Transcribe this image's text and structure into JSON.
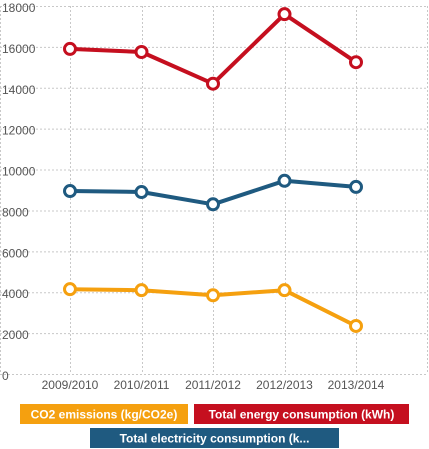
{
  "chart_data": {
    "type": "line",
    "categories": [
      "2009/2010",
      "2010/2011",
      "2011/2012",
      "2012/2013",
      "2013/2014"
    ],
    "ylim": [
      0,
      18000
    ],
    "yticks": [
      0,
      2000,
      4000,
      6000,
      8000,
      10000,
      12000,
      14000,
      16000,
      18000
    ],
    "grid": true,
    "legend_position": "bottom",
    "series": [
      {
        "name": "CO2 emissions (kg/CO2e)",
        "color": "#f5a00f",
        "values": [
          4150,
          4100,
          3850,
          4100,
          2350
        ]
      },
      {
        "name": "Total energy consumption (kWh)",
        "color": "#c50f1f",
        "values": [
          15900,
          15750,
          14200,
          17600,
          15250
        ]
      },
      {
        "name": "Total electricity consumption (k...",
        "color": "#1f5a80",
        "values": [
          8950,
          8900,
          8300,
          9450,
          9150
        ]
      }
    ]
  }
}
